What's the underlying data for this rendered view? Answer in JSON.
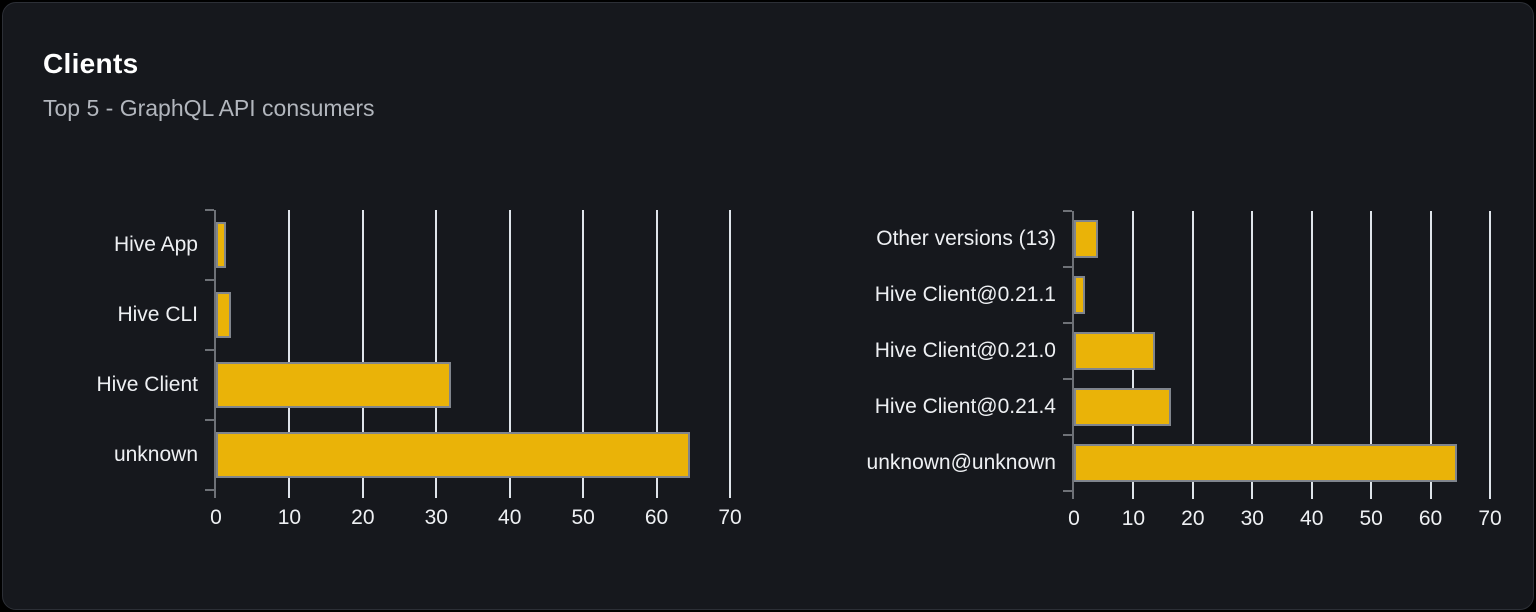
{
  "card": {
    "title": "Clients",
    "subtitle": "Top 5 - GraphQL API consumers"
  },
  "colors": {
    "page_bg": "#000000",
    "card_bg": "#16181d",
    "card_border": "#2c2f36",
    "title": "#ffffff",
    "subtitle": "#b2b6bd",
    "label": "#eef0f3",
    "bar": "#eab308",
    "bar_border": "#80858d",
    "grid": "#dfe4ea",
    "axis": "#6e7177"
  },
  "chart_data": [
    {
      "type": "bar",
      "orientation": "horizontal",
      "title": "",
      "categories": [
        "Hive App",
        "Hive CLI",
        "Hive Client",
        "unknown"
      ],
      "values": [
        1.3,
        2,
        32,
        64.5
      ],
      "xlabel": "",
      "ylabel": "",
      "xlim": [
        0,
        70
      ],
      "xticks": [
        0,
        10,
        20,
        30,
        40,
        50,
        60,
        70
      ],
      "grid": true,
      "legend": false
    },
    {
      "type": "bar",
      "orientation": "horizontal",
      "title": "",
      "categories": [
        "Other versions (13)",
        "Hive Client@0.21.1",
        "Hive Client@0.21.0",
        "Hive Client@0.21.4",
        "unknown@unknown"
      ],
      "values": [
        4,
        1.8,
        13.7,
        16.4,
        64.5
      ],
      "xlabel": "",
      "ylabel": "",
      "xlim": [
        0,
        70
      ],
      "xticks": [
        0,
        10,
        20,
        30,
        40,
        50,
        60,
        70
      ],
      "grid": true,
      "legend": false
    }
  ]
}
